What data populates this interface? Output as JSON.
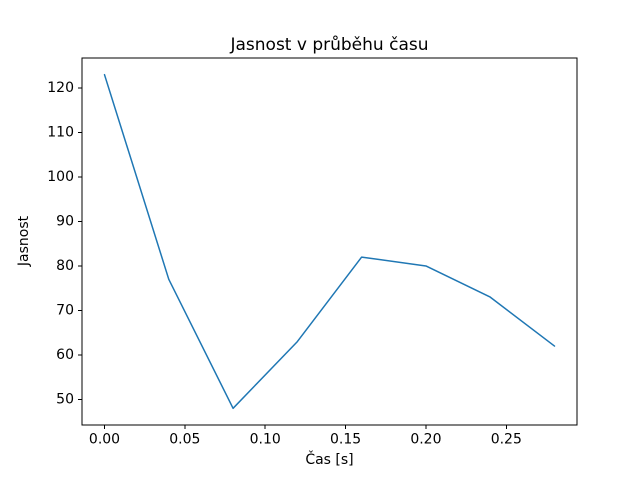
{
  "figure": {
    "background": "#ffffff",
    "text_color": "#000000",
    "axis_color": "#000000"
  },
  "chart_data": {
    "type": "line",
    "title": "Jasnost v průběhu času",
    "xlabel": "Čas [s]",
    "ylabel": "Jasnost",
    "x": [
      0.0,
      0.04,
      0.08,
      0.12,
      0.16,
      0.2,
      0.24,
      0.28
    ],
    "y": [
      123,
      77,
      48,
      63,
      82,
      80,
      73,
      62
    ],
    "xlim": [
      -0.014,
      0.294
    ],
    "ylim": [
      44.25,
      126.75
    ],
    "xticks": {
      "values": [
        0.0,
        0.05,
        0.1,
        0.15,
        0.2,
        0.25
      ],
      "labels": [
        "0.00",
        "0.05",
        "0.10",
        "0.15",
        "0.20",
        "0.25"
      ]
    },
    "yticks": {
      "values": [
        50,
        60,
        70,
        80,
        90,
        100,
        110,
        120
      ],
      "labels": [
        "50",
        "60",
        "70",
        "80",
        "90",
        "100",
        "110",
        "120"
      ]
    },
    "grid": false,
    "legend": null,
    "line_color": "#1f77b4",
    "line_width": 1.5
  }
}
